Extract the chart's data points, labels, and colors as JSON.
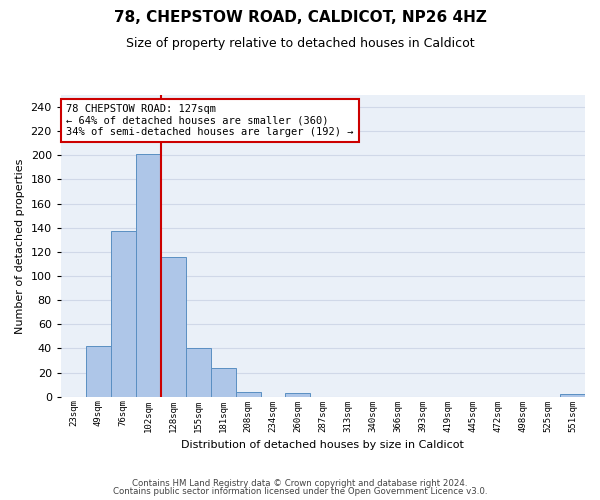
{
  "title_line1": "78, CHEPSTOW ROAD, CALDICOT, NP26 4HZ",
  "title_line2": "Size of property relative to detached houses in Caldicot",
  "xlabel": "Distribution of detached houses by size in Caldicot",
  "ylabel": "Number of detached properties",
  "bar_labels": [
    "23sqm",
    "49sqm",
    "76sqm",
    "102sqm",
    "128sqm",
    "155sqm",
    "181sqm",
    "208sqm",
    "234sqm",
    "260sqm",
    "287sqm",
    "313sqm",
    "340sqm",
    "366sqm",
    "393sqm",
    "419sqm",
    "445sqm",
    "472sqm",
    "498sqm",
    "525sqm",
    "551sqm"
  ],
  "bar_values": [
    0,
    42,
    137,
    201,
    116,
    40,
    24,
    4,
    0,
    3,
    0,
    0,
    0,
    0,
    0,
    0,
    0,
    0,
    0,
    0,
    2
  ],
  "bar_color": "#aec6e8",
  "bar_edge_color": "#5a8fc2",
  "vline_x": 3.5,
  "annotation_text_line1": "78 CHEPSTOW ROAD: 127sqm",
  "annotation_text_line2": "← 64% of detached houses are smaller (360)",
  "annotation_text_line3": "34% of semi-detached houses are larger (192) →",
  "annotation_box_color": "#ffffff",
  "annotation_box_edge_color": "#cc0000",
  "vline_color": "#cc0000",
  "ylim": [
    0,
    250
  ],
  "yticks": [
    0,
    20,
    40,
    60,
    80,
    100,
    120,
    140,
    160,
    180,
    200,
    220,
    240
  ],
  "grid_color": "#d0d8e8",
  "bg_color": "#eaf0f8",
  "footnote1": "Contains HM Land Registry data © Crown copyright and database right 2024.",
  "footnote2": "Contains public sector information licensed under the Open Government Licence v3.0."
}
